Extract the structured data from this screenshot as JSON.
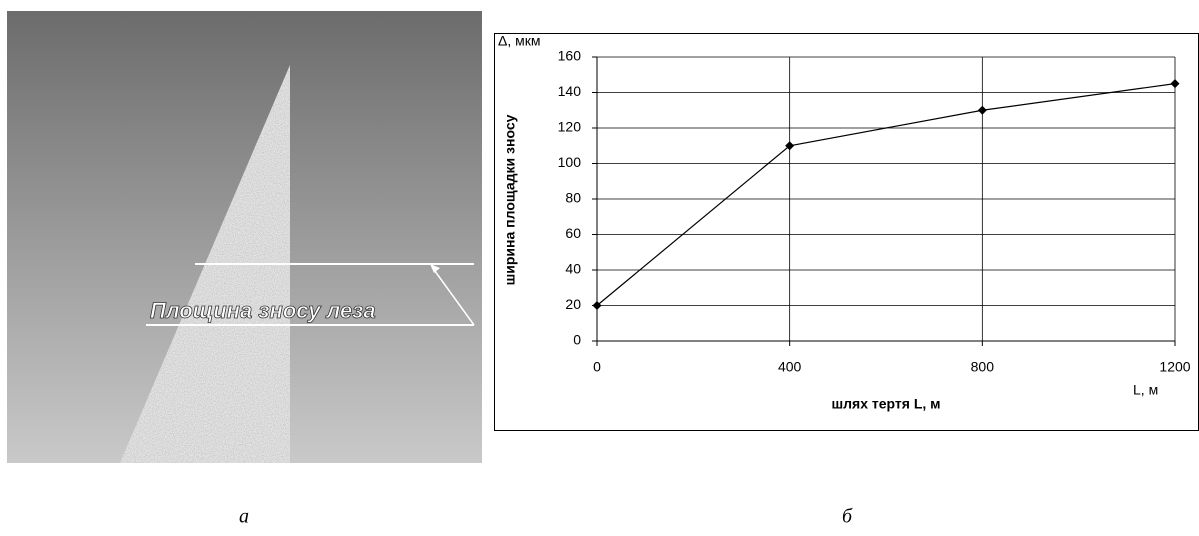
{
  "image": {
    "label": "Площина зносу леза"
  },
  "captions": [
    "а",
    "б"
  ],
  "chart_data": {
    "type": "line",
    "y_unit_label": "Δ, мкм",
    "x_unit_label": "L, м",
    "xlabel": "шлях тертя L, м",
    "ylabel": "ширина площадки зносу",
    "x": [
      0,
      400,
      800,
      1200
    ],
    "values": [
      20,
      110,
      130,
      145
    ],
    "color": "#000000",
    "marker": "diamond",
    "xlim": [
      0,
      1200
    ],
    "xticks": [
      0,
      400,
      800,
      1200
    ],
    "ylim": [
      0,
      160
    ],
    "yticks": [
      0,
      20,
      40,
      60,
      80,
      100,
      120,
      140,
      160
    ],
    "grid": true
  }
}
